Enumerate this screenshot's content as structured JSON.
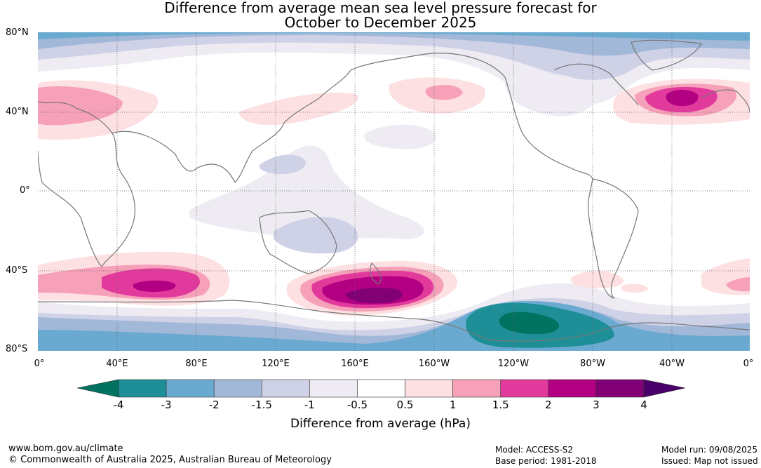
{
  "title": {
    "line1": "Difference from average mean sea level pressure forecast for",
    "line2": "October to December 2025"
  },
  "lat_labels": [
    "80°N",
    "40°N",
    "0°",
    "40°S",
    "80°S"
  ],
  "lon_labels": [
    "0°",
    "40°E",
    "80°E",
    "120°E",
    "160°E",
    "160°W",
    "120°W",
    "80°W",
    "40°W",
    "0°"
  ],
  "colorbar": {
    "title": "Difference from average (hPa)",
    "tick_labels": [
      "-4",
      "-3",
      "-2",
      "-1.5",
      "-1",
      "-0.5",
      "0.5",
      "1",
      "1.5",
      "2",
      "3",
      "4"
    ],
    "colors": [
      "#1e8f96",
      "#6aaad0",
      "#a2b8d8",
      "#cfd1e7",
      "#eeebf3",
      "#ffffff",
      "#fde0e2",
      "#f6a0ba",
      "#e23a9c",
      "#b30083",
      "#820075"
    ],
    "under_color": "#00725f",
    "over_color": "#4a006a"
  },
  "footer": {
    "website": "www.bom.gov.au/climate",
    "copyright": "© Commonwealth of Australia 2025, Australian Bureau of Meteorology",
    "model": "Model: ACCESS-S2",
    "base_period": "Base period: 1981-2018",
    "model_run": "Model run: 09/08/2025",
    "issued": "Issued: Map not issued"
  }
}
